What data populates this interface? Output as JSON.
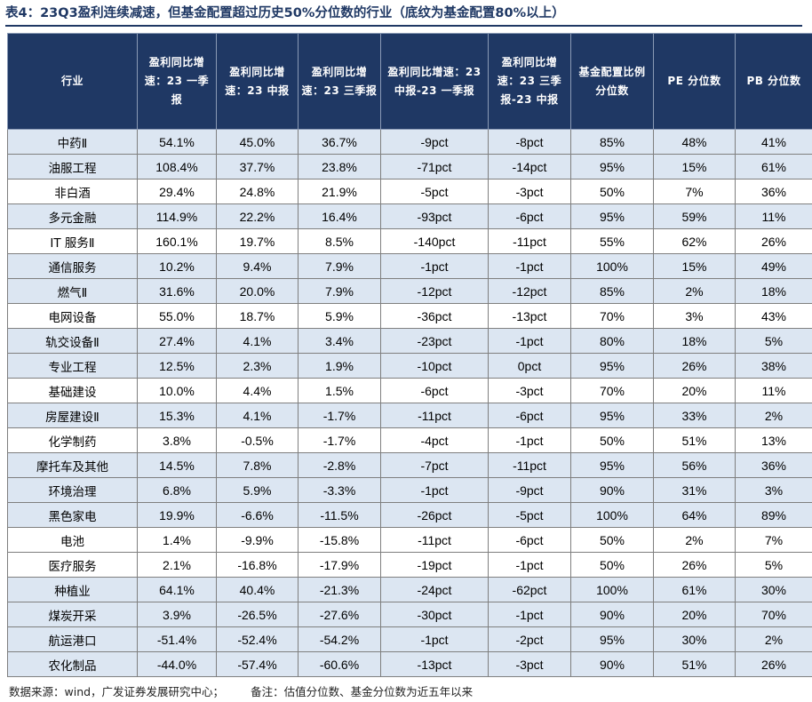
{
  "title": "表4：23Q3盈利连续减速，但基金配置超过历史50%分位数的行业（底纹为基金配置80%以上）",
  "table": {
    "headers": [
      "行业",
      "盈利同比增速：23 一季报",
      "盈利同比增速：23 中报",
      "盈利同比增速：23 三季报",
      "盈利同比增速：23 中报-23 一季报",
      "盈利同比增速：23 三季报-23 中报",
      "基金配置比例分位数",
      "PE 分位数",
      "PB 分位数"
    ],
    "rows": [
      {
        "cells": [
          "中药Ⅱ",
          "54.1%",
          "45.0%",
          "36.7%",
          "-9pct",
          "-8pct",
          "85%",
          "48%",
          "41%"
        ],
        "shaded": true
      },
      {
        "cells": [
          "油服工程",
          "108.4%",
          "37.7%",
          "23.8%",
          "-71pct",
          "-14pct",
          "95%",
          "15%",
          "61%"
        ],
        "shaded": true
      },
      {
        "cells": [
          "非白酒",
          "29.4%",
          "24.8%",
          "21.9%",
          "-5pct",
          "-3pct",
          "50%",
          "7%",
          "36%"
        ],
        "shaded": false
      },
      {
        "cells": [
          "多元金融",
          "114.9%",
          "22.2%",
          "16.4%",
          "-93pct",
          "-6pct",
          "95%",
          "59%",
          "11%"
        ],
        "shaded": true
      },
      {
        "cells": [
          "IT 服务Ⅱ",
          "160.1%",
          "19.7%",
          "8.5%",
          "-140pct",
          "-11pct",
          "55%",
          "62%",
          "26%"
        ],
        "shaded": false
      },
      {
        "cells": [
          "通信服务",
          "10.2%",
          "9.4%",
          "7.9%",
          "-1pct",
          "-1pct",
          "100%",
          "15%",
          "49%"
        ],
        "shaded": true
      },
      {
        "cells": [
          "燃气Ⅱ",
          "31.6%",
          "20.0%",
          "7.9%",
          "-12pct",
          "-12pct",
          "85%",
          "2%",
          "18%"
        ],
        "shaded": true
      },
      {
        "cells": [
          "电网设备",
          "55.0%",
          "18.7%",
          "5.9%",
          "-36pct",
          "-13pct",
          "70%",
          "3%",
          "43%"
        ],
        "shaded": false
      },
      {
        "cells": [
          "轨交设备Ⅱ",
          "27.4%",
          "4.1%",
          "3.4%",
          "-23pct",
          "-1pct",
          "80%",
          "18%",
          "5%"
        ],
        "shaded": true
      },
      {
        "cells": [
          "专业工程",
          "12.5%",
          "2.3%",
          "1.9%",
          "-10pct",
          "0pct",
          "95%",
          "26%",
          "38%"
        ],
        "shaded": true
      },
      {
        "cells": [
          "基础建设",
          "10.0%",
          "4.4%",
          "1.5%",
          "-6pct",
          "-3pct",
          "70%",
          "20%",
          "11%"
        ],
        "shaded": false
      },
      {
        "cells": [
          "房屋建设Ⅱ",
          "15.3%",
          "4.1%",
          "-1.7%",
          "-11pct",
          "-6pct",
          "95%",
          "33%",
          "2%"
        ],
        "shaded": true
      },
      {
        "cells": [
          "化学制药",
          "3.8%",
          "-0.5%",
          "-1.7%",
          "-4pct",
          "-1pct",
          "50%",
          "51%",
          "13%"
        ],
        "shaded": false
      },
      {
        "cells": [
          "摩托车及其他",
          "14.5%",
          "7.8%",
          "-2.8%",
          "-7pct",
          "-11pct",
          "95%",
          "56%",
          "36%"
        ],
        "shaded": true
      },
      {
        "cells": [
          "环境治理",
          "6.8%",
          "5.9%",
          "-3.3%",
          "-1pct",
          "-9pct",
          "90%",
          "31%",
          "3%"
        ],
        "shaded": true
      },
      {
        "cells": [
          "黑色家电",
          "19.9%",
          "-6.6%",
          "-11.5%",
          "-26pct",
          "-5pct",
          "100%",
          "64%",
          "89%"
        ],
        "shaded": true
      },
      {
        "cells": [
          "电池",
          "1.4%",
          "-9.9%",
          "-15.8%",
          "-11pct",
          "-6pct",
          "50%",
          "2%",
          "7%"
        ],
        "shaded": false
      },
      {
        "cells": [
          "医疗服务",
          "2.1%",
          "-16.8%",
          "-17.9%",
          "-19pct",
          "-1pct",
          "50%",
          "26%",
          "5%"
        ],
        "shaded": false
      },
      {
        "cells": [
          "种植业",
          "64.1%",
          "40.4%",
          "-21.3%",
          "-24pct",
          "-62pct",
          "100%",
          "61%",
          "30%"
        ],
        "shaded": true
      },
      {
        "cells": [
          "煤炭开采",
          "3.9%",
          "-26.5%",
          "-27.6%",
          "-30pct",
          "-1pct",
          "90%",
          "20%",
          "70%"
        ],
        "shaded": true
      },
      {
        "cells": [
          "航运港口",
          "-51.4%",
          "-52.4%",
          "-54.2%",
          "-1pct",
          "-2pct",
          "95%",
          "30%",
          "2%"
        ],
        "shaded": true
      },
      {
        "cells": [
          "农化制品",
          "-44.0%",
          "-57.4%",
          "-60.6%",
          "-13pct",
          "-3pct",
          "90%",
          "51%",
          "26%"
        ],
        "shaded": true
      }
    ]
  },
  "footnote": {
    "source": "数据来源：wind，广发证券发展研究中心；",
    "note": "备注：估值分位数、基金分位数为近五年以来"
  }
}
